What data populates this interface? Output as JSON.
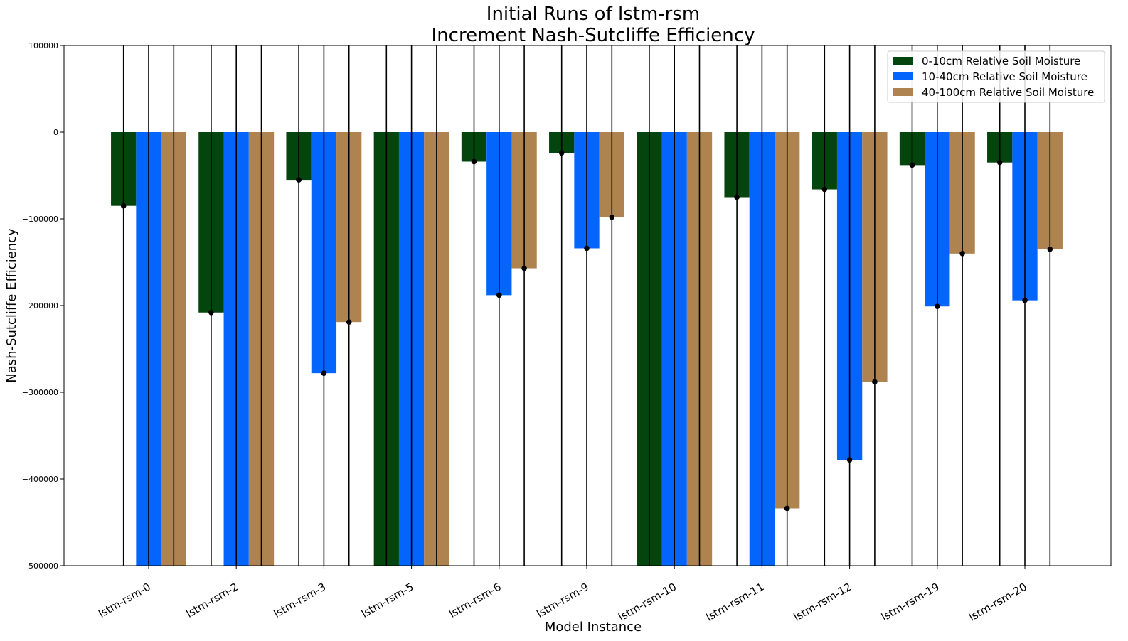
{
  "chart_data": {
    "type": "bar",
    "title": "Initial Runs of lstm-rsm",
    "subtitle": "Increment Nash-Sutcliffe Efficiency",
    "xlabel": "Model Instance",
    "ylabel": "Nash-Sutcliffe Efficiency",
    "ylim": [
      -500000,
      100000
    ],
    "yticks": [
      100000,
      0,
      -100000,
      -200000,
      -300000,
      -400000,
      -500000
    ],
    "ytick_labels": [
      "100000",
      "0",
      "−100000",
      "−200000",
      "−300000",
      "−400000",
      "−500000"
    ],
    "grid": false,
    "legend_position": "top-right",
    "categories": [
      "lstm-rsm-0",
      "lstm-rsm-2",
      "lstm-rsm-3",
      "lstm-rsm-5",
      "lstm-rsm-6",
      "lstm-rsm-9",
      "lstm-rsm-10",
      "lstm-rsm-11",
      "lstm-rsm-12",
      "lstm-rsm-19",
      "lstm-rsm-20"
    ],
    "series": [
      {
        "name": "0-10cm Relative Soil Moisture",
        "color": "#03450c",
        "values": [
          -85000,
          -208000,
          -55000,
          -500000,
          -34000,
          -24000,
          -500000,
          -75000,
          -66000,
          -38000,
          -35000
        ]
      },
      {
        "name": "10-40cm Relative Soil Moisture",
        "color": "#0465fc",
        "values": [
          -500000,
          -500000,
          -278000,
          -500000,
          -188000,
          -134000,
          -500000,
          -500000,
          -378000,
          -201000,
          -194000
        ]
      },
      {
        "name": "40-100cm Relative Soil Moisture",
        "color": "#af8350",
        "values": [
          -500000,
          -500000,
          -219000,
          -500000,
          -157000,
          -98000,
          -500000,
          -434000,
          -288000,
          -140000,
          -135000
        ]
      }
    ]
  }
}
